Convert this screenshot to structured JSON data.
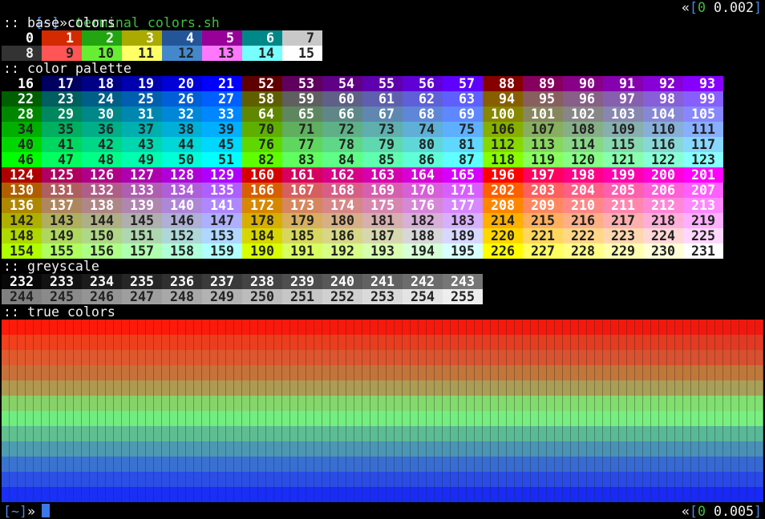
{
  "header": {
    "prompt_dir": "[~]",
    "prompt_arrow": "»",
    "command": "terminal_colors.sh",
    "status_open": "«",
    "bracket_open": "[",
    "exit_code": "0",
    "duration": "0.002",
    "bracket_close": "]"
  },
  "sections": [
    {
      "title": ":: base colors",
      "rows": [
        [
          0,
          1,
          2,
          3,
          4,
          5,
          6,
          7
        ],
        [
          8,
          9,
          10,
          11,
          12,
          13,
          14,
          15
        ]
      ]
    },
    {
      "title": ":: color palette",
      "rows": [
        [
          16,
          17,
          18,
          19,
          20,
          21,
          52,
          53,
          54,
          55,
          56,
          57,
          88,
          89,
          90,
          91,
          92,
          93
        ],
        [
          22,
          23,
          24,
          25,
          26,
          27,
          58,
          59,
          60,
          61,
          62,
          63,
          94,
          95,
          96,
          97,
          98,
          99
        ],
        [
          28,
          29,
          30,
          31,
          32,
          33,
          64,
          65,
          66,
          67,
          68,
          69,
          100,
          101,
          102,
          103,
          104,
          105
        ],
        [
          34,
          35,
          36,
          37,
          38,
          39,
          70,
          71,
          72,
          73,
          74,
          75,
          106,
          107,
          108,
          109,
          110,
          111
        ],
        [
          40,
          41,
          42,
          43,
          44,
          45,
          76,
          77,
          78,
          79,
          80,
          81,
          112,
          113,
          114,
          115,
          116,
          117
        ],
        [
          46,
          47,
          48,
          49,
          50,
          51,
          82,
          83,
          84,
          85,
          86,
          87,
          118,
          119,
          120,
          121,
          122,
          123
        ],
        [
          124,
          125,
          126,
          127,
          128,
          129,
          160,
          161,
          162,
          163,
          164,
          165,
          196,
          197,
          198,
          199,
          200,
          201
        ],
        [
          130,
          131,
          132,
          133,
          134,
          135,
          166,
          167,
          168,
          169,
          170,
          171,
          202,
          203,
          204,
          205,
          206,
          207
        ],
        [
          136,
          137,
          138,
          139,
          140,
          141,
          172,
          173,
          174,
          175,
          176,
          177,
          208,
          209,
          210,
          211,
          212,
          213
        ],
        [
          142,
          143,
          144,
          145,
          146,
          147,
          178,
          179,
          180,
          181,
          182,
          183,
          214,
          215,
          216,
          217,
          218,
          219
        ],
        [
          148,
          149,
          150,
          151,
          152,
          153,
          184,
          185,
          186,
          187,
          188,
          189,
          220,
          221,
          222,
          223,
          224,
          225
        ],
        [
          154,
          155,
          156,
          157,
          158,
          159,
          190,
          191,
          192,
          193,
          194,
          195,
          226,
          227,
          228,
          229,
          230,
          231
        ]
      ]
    },
    {
      "title": ":: greyscale",
      "rows": [
        [
          232,
          233,
          234,
          235,
          236,
          237,
          238,
          239,
          240,
          241,
          242,
          243
        ],
        [
          244,
          245,
          246,
          247,
          248,
          249,
          250,
          251,
          252,
          253,
          254,
          255
        ]
      ]
    },
    {
      "title": ":: true colors",
      "rows": []
    }
  ],
  "footer": {
    "prompt_dir": "[~]",
    "prompt_arrow": "»",
    "status_open": "«",
    "bracket_open": "[",
    "exit_code": "0",
    "duration": "0.005",
    "bracket_close": "]"
  }
}
